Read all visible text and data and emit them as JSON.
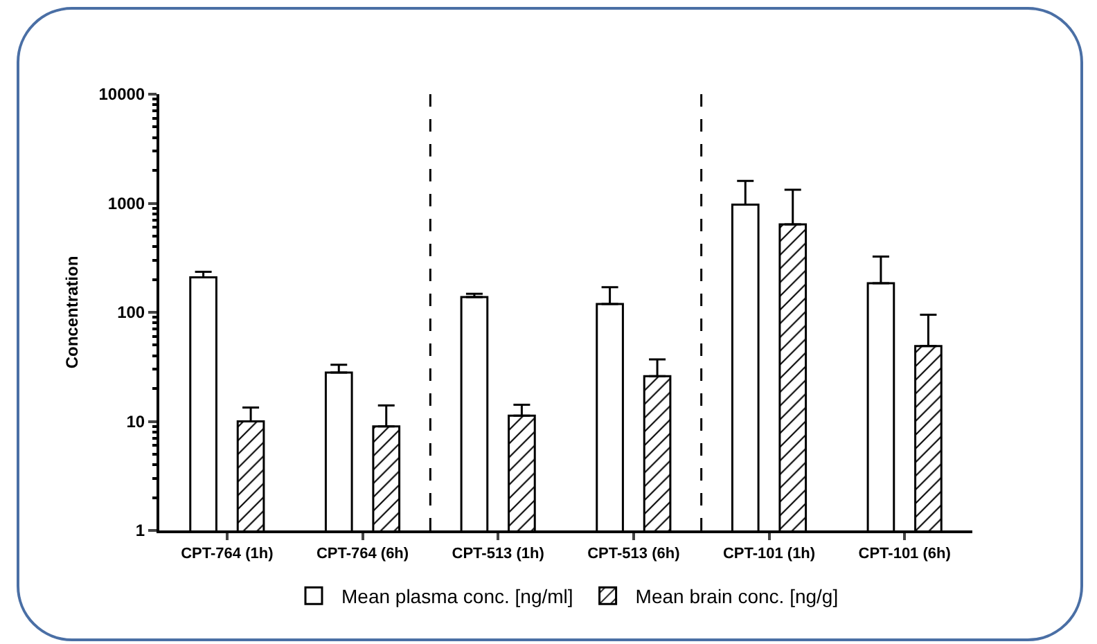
{
  "chart_data": {
    "type": "bar",
    "ylabel": "Concentration",
    "categories": [
      "CPT-764 (1h)",
      "CPT-764 (6h)",
      "CPT-513 (1h)",
      "CPT-513 (6h)",
      "CPT-101 (1h)",
      "CPT-101 (6h)"
    ],
    "series": [
      {
        "name": "Mean plasma conc. [ng/ml]",
        "color": "#ffffff",
        "values": [
          209,
          28,
          138,
          119,
          970,
          185
        ],
        "errors": [
          [
            209,
            235
          ],
          [
            28,
            33
          ],
          [
            138,
            148
          ],
          [
            119,
            170
          ],
          [
            970,
            1600
          ],
          [
            185,
            324
          ]
        ]
      },
      {
        "name": "Mean brain conc. [ng/g]",
        "color": "#000000",
        "values": [
          10,
          9,
          11.3,
          26,
          640,
          49
        ],
        "errors": [
          [
            10,
            13.4
          ],
          [
            9,
            14
          ],
          [
            11.3,
            14.2
          ],
          [
            26,
            37
          ],
          [
            640,
            1330
          ],
          [
            49,
            95
          ]
        ]
      }
    ],
    "log": true,
    "ylim": [
      1,
      10000
    ],
    "yticks": [
      1,
      10,
      100,
      1000,
      10000
    ],
    "grid": false,
    "legend": "bottom"
  }
}
